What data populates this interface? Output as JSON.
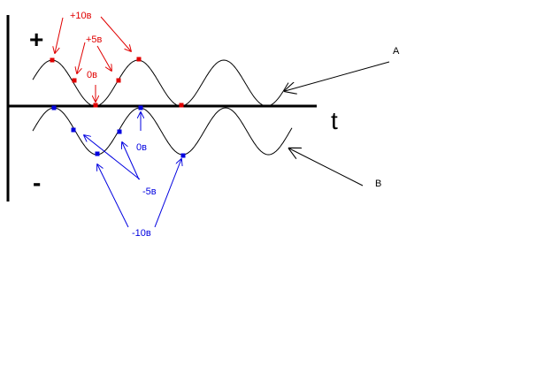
{
  "axes": {
    "plus": "+",
    "minus": "-",
    "t": "t"
  },
  "waves": {
    "a_label": "A",
    "b_label": "B"
  },
  "red_labels": {
    "plus10": "+10в",
    "plus5": "+5в",
    "zero": "0в"
  },
  "blue_labels": {
    "zero": "0в",
    "minus5": "-5в",
    "minus10": "-10в"
  },
  "colors": {
    "red": "#e00000",
    "blue": "#0000e0",
    "black": "#000000"
  }
}
